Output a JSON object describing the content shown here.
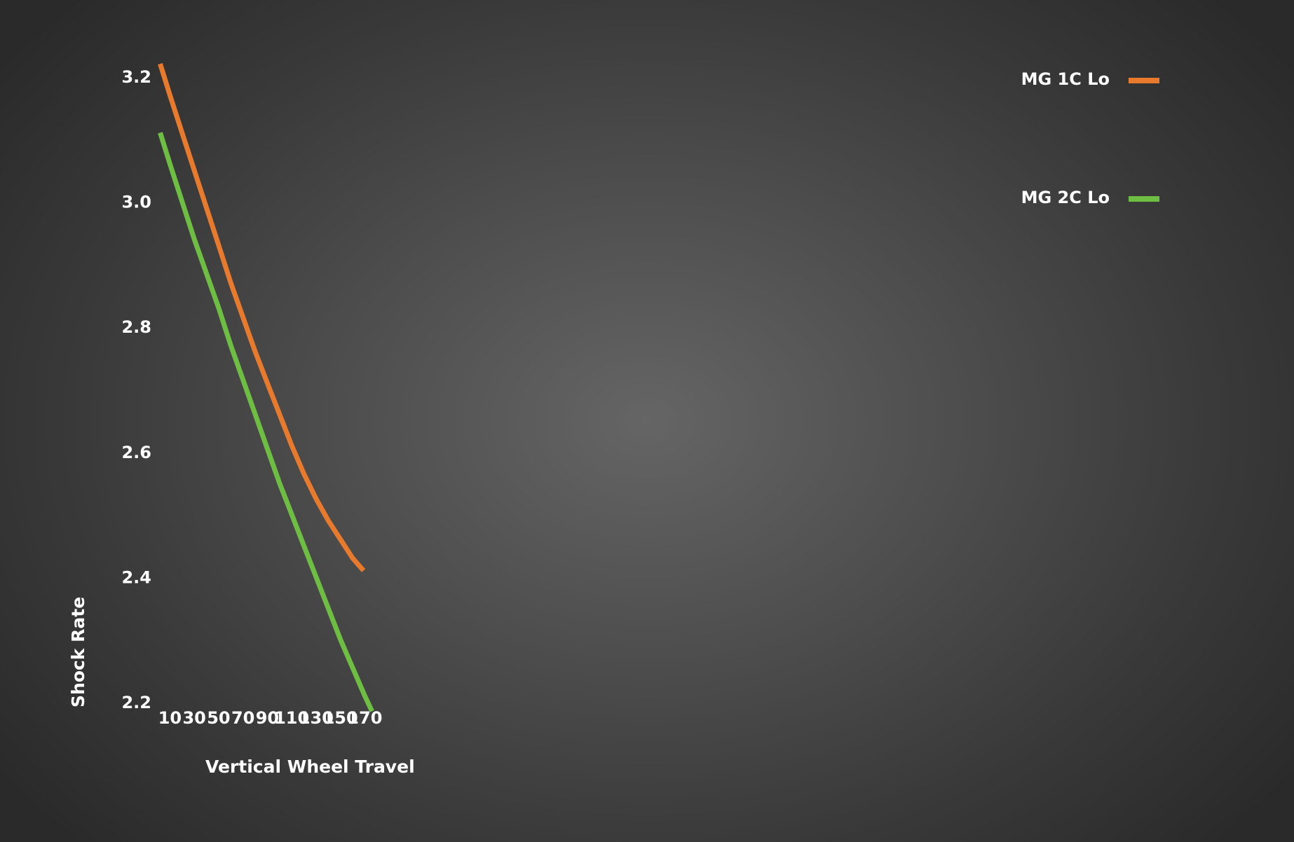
{
  "chart_data": {
    "type": "line",
    "xlabel": "Vertical Wheel Travel",
    "ylabel": "Shock Rate",
    "x_ticks": [
      "10",
      "30",
      "50",
      "70",
      "90",
      "110",
      "130",
      "150",
      "170"
    ],
    "y_ticks": [
      "2.2",
      "2.4",
      "2.6",
      "2.8",
      "3.0",
      "3.2"
    ],
    "xlim": [
      0,
      176
    ],
    "ylim": [
      2.2,
      3.22
    ],
    "grid": false,
    "legend": "top-right",
    "series": [
      {
        "name": "MG 1C Lo",
        "color": "#e87a2e",
        "x": [
          2,
          10,
          20,
          30,
          40,
          50,
          60,
          70,
          80,
          90,
          100,
          110,
          120,
          130,
          140,
          150,
          160,
          169
        ],
        "y": [
          3.22,
          3.17,
          3.11,
          3.05,
          2.99,
          2.93,
          2.87,
          2.815,
          2.76,
          2.71,
          2.66,
          2.61,
          2.565,
          2.525,
          2.49,
          2.46,
          2.43,
          2.41
        ]
      },
      {
        "name": "MG 2C Lo",
        "color": "#6fbe44",
        "x": [
          2,
          10,
          20,
          30,
          40,
          50,
          60,
          70,
          80,
          90,
          100,
          110,
          120,
          130,
          140,
          150,
          160,
          170,
          176
        ],
        "y": [
          3.11,
          3.06,
          3.0,
          2.94,
          2.885,
          2.83,
          2.77,
          2.715,
          2.66,
          2.605,
          2.55,
          2.5,
          2.45,
          2.4,
          2.35,
          2.3,
          2.255,
          2.21,
          2.185
        ]
      }
    ]
  }
}
